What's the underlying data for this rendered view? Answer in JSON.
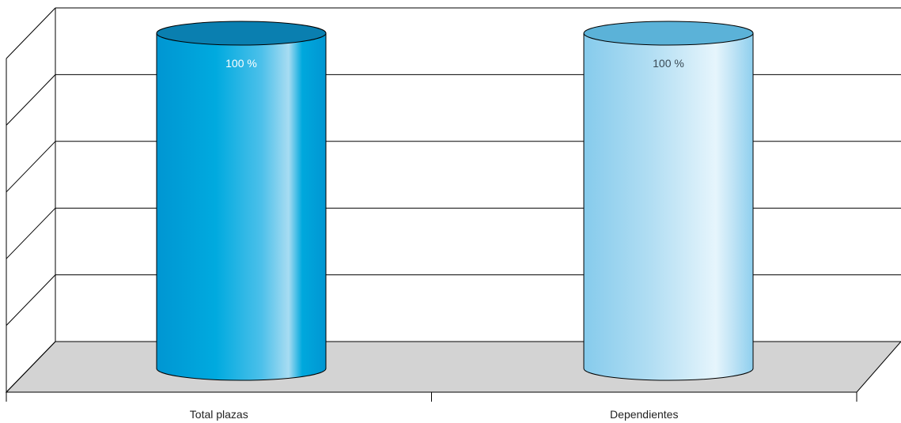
{
  "chart_data": {
    "type": "bar",
    "categories": [
      "Total plazas",
      "Dependientes"
    ],
    "values": [
      100,
      100
    ],
    "value_labels": [
      "100 %",
      "100 %"
    ],
    "ylim": [
      0,
      100
    ],
    "grid": true,
    "colors": {
      "series": [
        "#00a4dc",
        "#8ecfee"
      ],
      "series_highlight": [
        "#a8dcf2",
        "#e6f5fc"
      ],
      "series_top": [
        "#0a7fb0",
        "#5bb2d8"
      ],
      "floor": "#d3d3d3",
      "gridline": "#000000"
    }
  }
}
